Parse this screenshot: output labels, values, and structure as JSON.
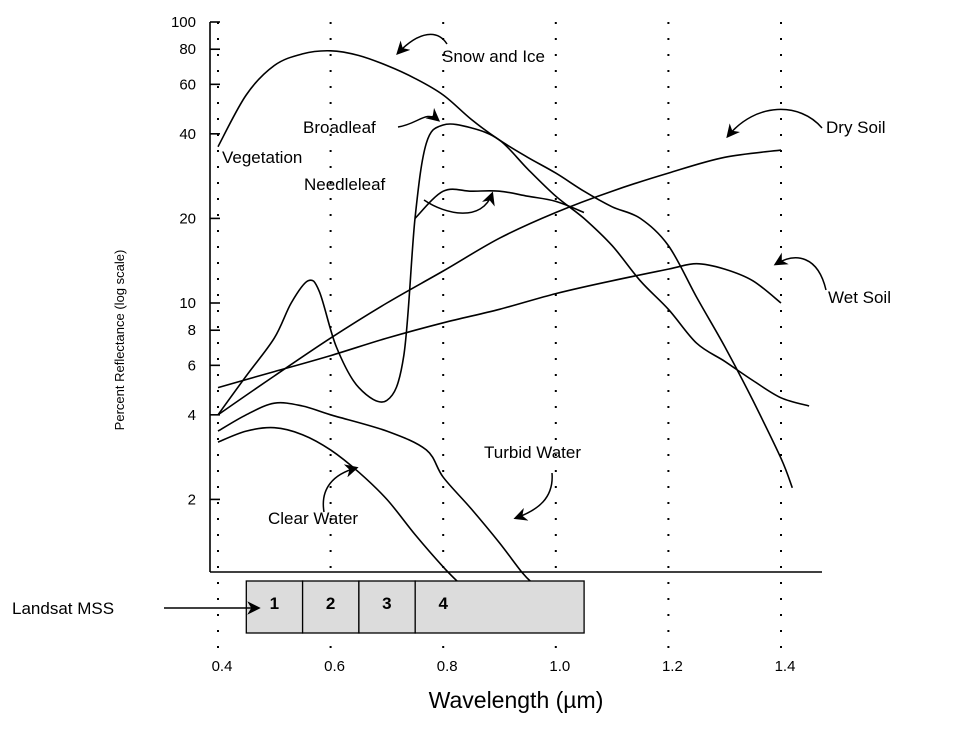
{
  "chart_data": {
    "type": "line",
    "title": "",
    "xlabel": "Wavelength (µm)",
    "ylabel": "Percent Reflectance (log scale)",
    "xlim": [
      0.4,
      1.45
    ],
    "ylim": [
      1,
      100
    ],
    "yscale": "log",
    "grid": "vertical-dotted",
    "x_ticks": [
      {
        "value": 0.4,
        "label": "0.4"
      },
      {
        "value": 0.6,
        "label": "0.6"
      },
      {
        "value": 0.8,
        "label": "0.8"
      },
      {
        "value": 1.0,
        "label": "1.0"
      },
      {
        "value": 1.2,
        "label": "1.2"
      },
      {
        "value": 1.4,
        "label": "1.4"
      }
    ],
    "y_ticks": [
      {
        "value": 2,
        "label": "2"
      },
      {
        "value": 4,
        "label": "4"
      },
      {
        "value": 6,
        "label": "6"
      },
      {
        "value": 8,
        "label": "8"
      },
      {
        "value": 10,
        "label": "10"
      },
      {
        "value": 20,
        "label": "20"
      },
      {
        "value": 40,
        "label": "40"
      },
      {
        "value": 60,
        "label": "60"
      },
      {
        "value": 80,
        "label": "80"
      },
      {
        "value": 100,
        "label": "100"
      }
    ],
    "series": [
      {
        "name": "Snow and Ice",
        "points": [
          [
            0.4,
            36
          ],
          [
            0.45,
            55
          ],
          [
            0.5,
            70
          ],
          [
            0.55,
            77
          ],
          [
            0.6,
            79
          ],
          [
            0.65,
            76
          ],
          [
            0.7,
            70
          ],
          [
            0.75,
            63
          ],
          [
            0.8,
            55
          ],
          [
            0.85,
            45
          ],
          [
            0.9,
            38
          ],
          [
            0.95,
            33
          ],
          [
            1.0,
            29
          ],
          [
            1.05,
            25
          ],
          [
            1.1,
            22
          ],
          [
            1.15,
            20
          ],
          [
            1.2,
            16
          ],
          [
            1.25,
            10.5
          ],
          [
            1.3,
            7
          ],
          [
            1.35,
            4.5
          ],
          [
            1.4,
            2.8
          ],
          [
            1.42,
            2.2
          ]
        ]
      },
      {
        "name": "Vegetation",
        "points": [
          [
            0.4,
            4
          ],
          [
            0.45,
            5.5
          ],
          [
            0.5,
            7.5
          ],
          [
            0.53,
            10
          ],
          [
            0.56,
            12
          ],
          [
            0.58,
            11
          ],
          [
            0.61,
            7
          ],
          [
            0.65,
            5
          ],
          [
            0.7,
            4.5
          ],
          [
            0.73,
            6.5
          ],
          [
            0.75,
            20
          ],
          [
            0.77,
            37
          ],
          [
            0.8,
            43
          ],
          [
            0.85,
            42
          ],
          [
            0.9,
            38
          ],
          [
            0.95,
            30
          ],
          [
            1.0,
            24
          ],
          [
            1.05,
            20
          ],
          [
            1.1,
            16
          ],
          [
            1.15,
            12
          ],
          [
            1.2,
            9.5
          ],
          [
            1.25,
            7.2
          ],
          [
            1.3,
            6.2
          ],
          [
            1.35,
            5.3
          ],
          [
            1.4,
            4.6
          ],
          [
            1.45,
            4.3
          ]
        ]
      },
      {
        "name": "Needleleaf",
        "points": [
          [
            0.75,
            20
          ],
          [
            0.8,
            25
          ],
          [
            0.85,
            25
          ],
          [
            0.9,
            25
          ],
          [
            0.95,
            24
          ],
          [
            1.0,
            23
          ],
          [
            1.05,
            21
          ]
        ]
      },
      {
        "name": "Dry Soil",
        "points": [
          [
            0.4,
            4
          ],
          [
            0.5,
            5.5
          ],
          [
            0.6,
            7.5
          ],
          [
            0.7,
            10
          ],
          [
            0.8,
            13
          ],
          [
            0.9,
            17
          ],
          [
            1.0,
            21
          ],
          [
            1.1,
            25
          ],
          [
            1.2,
            29
          ],
          [
            1.3,
            33
          ],
          [
            1.4,
            35
          ]
        ]
      },
      {
        "name": "Wet Soil",
        "points": [
          [
            0.4,
            5
          ],
          [
            0.5,
            5.7
          ],
          [
            0.6,
            6.5
          ],
          [
            0.7,
            7.5
          ],
          [
            0.8,
            8.5
          ],
          [
            0.9,
            9.5
          ],
          [
            1.0,
            10.8
          ],
          [
            1.1,
            12
          ],
          [
            1.2,
            13.2
          ],
          [
            1.25,
            13.8
          ],
          [
            1.3,
            13.2
          ],
          [
            1.35,
            12
          ],
          [
            1.4,
            10
          ]
        ]
      },
      {
        "name": "Turbid Water",
        "points": [
          [
            0.4,
            3.5
          ],
          [
            0.45,
            4
          ],
          [
            0.5,
            4.4
          ],
          [
            0.55,
            4.3
          ],
          [
            0.6,
            4
          ],
          [
            0.7,
            3.5
          ],
          [
            0.77,
            3
          ],
          [
            0.8,
            2.4
          ],
          [
            0.85,
            1.85
          ],
          [
            0.9,
            1.4
          ],
          [
            0.94,
            1.1
          ],
          [
            0.96,
            1
          ]
        ]
      },
      {
        "name": "Clear Water",
        "points": [
          [
            0.4,
            3.2
          ],
          [
            0.45,
            3.5
          ],
          [
            0.5,
            3.6
          ],
          [
            0.55,
            3.4
          ],
          [
            0.6,
            3
          ],
          [
            0.65,
            2.5
          ],
          [
            0.7,
            2
          ],
          [
            0.75,
            1.5
          ],
          [
            0.8,
            1.15
          ],
          [
            0.83,
            1
          ]
        ]
      }
    ],
    "curve_labels": [
      "Snow and Ice",
      "Broadleaf",
      "Vegetation",
      "Needleleaf",
      "Dry Soil",
      "Wet Soil",
      "Turbid Water",
      "Clear Water"
    ],
    "landsat_mss": {
      "label": "Landsat MSS",
      "bands": [
        {
          "label": "1",
          "start": 0.5,
          "end": 0.6
        },
        {
          "label": "2",
          "start": 0.6,
          "end": 0.7
        },
        {
          "label": "3",
          "start": 0.7,
          "end": 0.8
        },
        {
          "label": "4",
          "start": 0.8,
          "end": 1.1
        }
      ]
    }
  }
}
